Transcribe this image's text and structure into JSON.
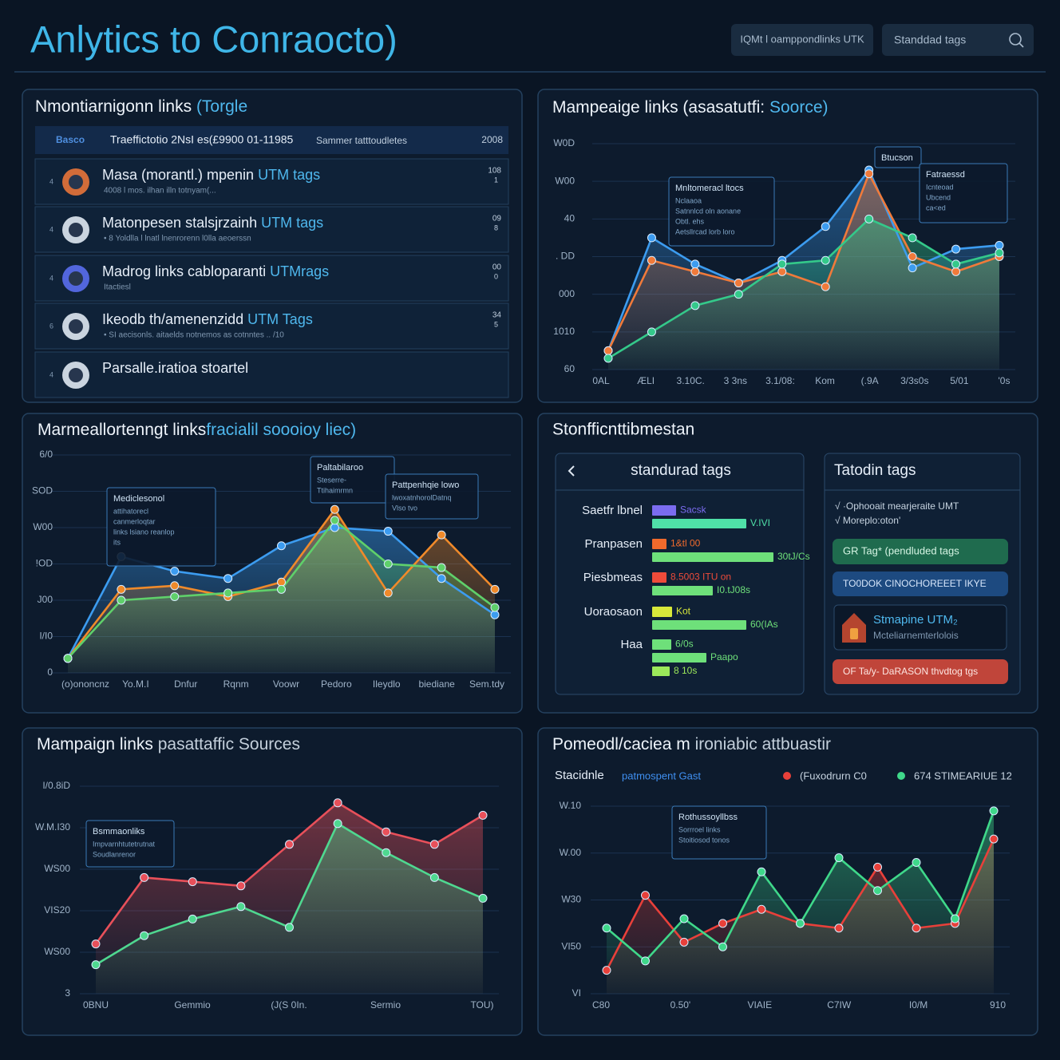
{
  "header": {
    "title": "Anlytics to Conraocto)",
    "buttons": [
      "IQMt l oamppondlinks UTK",
      "Standdad tags"
    ]
  },
  "links_panel": {
    "title": "Nmontiarnigonn links ",
    "title_accent": "(Torgle",
    "columns": [
      "Basco",
      "Traeffictotio 2NsI es(£9900 01-11985",
      "Sammer tatttoudletes",
      "2008"
    ],
    "rows": [
      {
        "marker": "4",
        "title": "Masa (morantl.) mpenin ",
        "accent": "UTM tags",
        "sub": "4008 l mos. ilhan illn totnyam(...",
        "num": "108",
        "num2": "1"
      },
      {
        "marker": "4",
        "title": "Matonpesen stalsjrzainh ",
        "accent": "UTM tags",
        "sub": "• 8 Yoldlla l lnatl lnenrorenn l0lla aeoerssn",
        "num": "09",
        "num2": "8"
      },
      {
        "marker": "4",
        "title": "Madrog links cabloparanti ",
        "accent": "UTMrags",
        "sub": "Itactiesl",
        "num": "00",
        "num2": "0"
      },
      {
        "marker": "6",
        "title": "Ikeodb th/amenenzidd ",
        "accent": "UTM Tags",
        "sub": "• SI aecisonls. aitaelds notnemos as cotnntes .. /10",
        "num": "34",
        "num2": "5"
      },
      {
        "marker": "4",
        "title": "Parsalle.iratioa stoartel"
      }
    ]
  },
  "tags_panel": {
    "title": "Stonfficnttibmestan",
    "left_title": "standurad tags",
    "xlim": [
      0,
      200
    ],
    "rows": [
      {
        "label": "Saetfr lbnel",
        "bars": [
          {
            "value": 30,
            "label": "Sacsk",
            "color": "#7b6cf0"
          },
          {
            "value": 118,
            "label": "V.IVI",
            "color": "#4fe0a8"
          }
        ]
      },
      {
        "label": "Pranpasen",
        "bars": [
          {
            "value": 18,
            "label": "1&tl  00",
            "color": "#f06a2c"
          },
          {
            "value": 152,
            "label": "30tJ/Cs",
            "color": "#6ee07a"
          }
        ]
      },
      {
        "label": "Piesbmeas",
        "bars": [
          {
            "value": 18,
            "label": "8.5003  ITU on",
            "color": "#ee4b3a"
          },
          {
            "value": 76,
            "label": "I0.tJ08s",
            "color": "#6ee07a"
          }
        ]
      },
      {
        "label": "Uoraosaon",
        "bars": [
          {
            "value": 25,
            "label": "Kot",
            "color": "#d8e83a"
          },
          {
            "value": 118,
            "label": "60(IAs",
            "color": "#6ee07a"
          }
        ]
      },
      {
        "label": "Haa",
        "bars": [
          {
            "value": 24,
            "label": "6/0s",
            "color": "#6ee07a"
          },
          {
            "value": 68,
            "label": "Paapo",
            "color": "#6ee07a"
          },
          {
            "value": 22,
            "label": "8 10s",
            "color": "#9be85a"
          }
        ]
      }
    ],
    "right_title": "Tatodin tags",
    "checks": [
      "√  ·Ophooait mearjeraite  UMT",
      "√  Moreplo:oton'"
    ],
    "pill_green": "GR Tag*  (pendluded tags",
    "pill_blue": "TO0DOK CINOCHOREEET IKYE",
    "card_title": "Stmapine UTM₂",
    "card_sub": "Mcteliarnemterlolois",
    "pill_red": "OF Ta/y-  DaRASON thvdtog tgs"
  },
  "chart_data": [
    {
      "type": "line",
      "title": "Mampeaige links (asasatutfi: ",
      "title_accent": "Soorce)",
      "categories": [
        "0AL",
        "ÆLI",
        "3.10C.",
        "3 3ns",
        "3.1/08:",
        "Kom",
        "(.9A",
        "3/3s0s",
        "5/01",
        "'0s"
      ],
      "ylim": [
        0,
        6
      ],
      "yticks": [
        {
          "value": 6,
          "label": "W0D"
        },
        {
          "value": 5,
          "label": "W00"
        },
        {
          "value": 4,
          "label": "40"
        },
        {
          "value": 3,
          "label": ". DD"
        },
        {
          "value": 2,
          "label": "000"
        },
        {
          "value": 1,
          "label": "1010"
        },
        {
          "value": 0,
          "label": "60"
        }
      ],
      "series": [
        {
          "color": "#3c9cf0",
          "values": [
            0.5,
            3.5,
            2.8,
            2.3,
            2.9,
            3.8,
            5.3,
            2.7,
            3.2,
            3.3
          ]
        },
        {
          "color": "#f07a3a",
          "values": [
            0.5,
            2.9,
            2.6,
            2.3,
            2.6,
            2.2,
            5.2,
            3.0,
            2.6,
            3.0
          ]
        },
        {
          "color": "#34c98a",
          "values": [
            0.3,
            1.0,
            1.7,
            2.0,
            2.8,
            2.9,
            4.0,
            3.5,
            2.8,
            3.1
          ]
        }
      ],
      "annotations": [
        {
          "lines": [
            "Mnltomeracl ltocs",
            "Nclaaoa",
            "Satnnlcd oln aonane",
            "Obtl. ehs",
            "Aetsllrcad lorb loro"
          ]
        },
        {
          "lines": [
            "Btucson"
          ]
        },
        {
          "lines": [
            "Fatraessd",
            "Icnteoad",
            "Ubcend",
            "ca<ed"
          ]
        }
      ]
    },
    {
      "type": "line",
      "title": "Marmeallortenngt links",
      "title_accent": "fracialil soooioy liec)",
      "categories": [
        "(o)ononcnz",
        "Yo.M.I",
        "Dnfur",
        "Rqnm",
        "Voowr",
        "Pedoro",
        "Ileydlo",
        "biediane",
        "Sem.tdy"
      ],
      "ylim": [
        0,
        6
      ],
      "yticks": [
        {
          "value": 6,
          "label": "6/0"
        },
        {
          "value": 5,
          "label": "SOD"
        },
        {
          "value": 4,
          "label": "W00"
        },
        {
          "value": 3,
          "label": "!OD"
        },
        {
          "value": 2,
          "label": "J00"
        },
        {
          "value": 1,
          "label": "I/I0"
        },
        {
          "value": 0,
          "label": "0"
        }
      ],
      "series": [
        {
          "color": "#3c9cf0",
          "values": [
            0.4,
            3.2,
            2.8,
            2.6,
            3.5,
            4.0,
            3.9,
            2.6,
            1.6
          ]
        },
        {
          "color": "#f08a2a",
          "values": [
            0.4,
            2.3,
            2.4,
            2.1,
            2.5,
            4.5,
            2.2,
            3.8,
            2.3
          ]
        },
        {
          "color": "#5fd06a",
          "values": [
            0.4,
            2.0,
            2.1,
            2.2,
            2.3,
            4.2,
            3.0,
            2.9,
            1.8
          ]
        }
      ],
      "annotations": [
        {
          "lines": [
            "Mediclesonol",
            "attihatorecl",
            "canmerloqtar",
            "links  lsiano reanlop",
            "its"
          ]
        },
        {
          "lines": [
            "Paltabilaroo",
            "Steserre-",
            "Ttihaimrmn"
          ]
        },
        {
          "lines": [
            "Pattpenhqie lowo",
            "lwoxatnhorolDatnq",
            "Vlso tvo"
          ]
        }
      ]
    },
    {
      "type": "line",
      "title": "Mampaign links ",
      "title_accent": "pasattaffic Sources",
      "categories": [
        "0BNU",
        null,
        "Gemmio",
        null,
        "(J(S 0In.",
        null,
        "Sermio",
        null,
        "TOU)"
      ],
      "ylim": [
        0,
        5
      ],
      "yticks": [
        {
          "value": 5,
          "label": "I/0.8iD"
        },
        {
          "value": 4,
          "label": "W.M.I30"
        },
        {
          "value": 3,
          "label": "WS00"
        },
        {
          "value": 2,
          "label": "VIS20"
        },
        {
          "value": 1,
          "label": "WS00"
        },
        {
          "value": 0,
          "label": "3"
        }
      ],
      "series": [
        {
          "color": "#e8505a",
          "values": [
            1.2,
            2.8,
            2.7,
            2.6,
            3.6,
            4.6,
            3.9,
            3.6,
            4.3
          ]
        },
        {
          "color": "#4fd890",
          "values": [
            0.7,
            1.4,
            1.8,
            2.1,
            1.6,
            4.1,
            3.4,
            2.8,
            2.3
          ]
        }
      ],
      "annotations": [
        {
          "lines": [
            "Bsmmaonliks",
            "Impvarnhtutetrutnat",
            "Soudlanrenor"
          ]
        }
      ]
    },
    {
      "type": "line",
      "title": "Pomeodl/caciea m",
      "title_accent": " ironiabic attbuastir",
      "legend_label": "Stacidnle",
      "legend_accent": "patmospent Gast",
      "categories": [
        "C80",
        null,
        "0.50'",
        null,
        "VIAIE",
        null,
        "C7IW",
        null,
        "I0/M",
        null,
        "910"
      ],
      "ylim": [
        0,
        4
      ],
      "yticks": [
        {
          "value": 4,
          "label": "W.10"
        },
        {
          "value": 3,
          "label": "W.00"
        },
        {
          "value": 2,
          "label": "W30"
        },
        {
          "value": 1,
          "label": "VI50"
        },
        {
          "value": 0,
          "label": "VI"
        }
      ],
      "series": [
        {
          "name": "(Fuxodrurn C0",
          "color": "#e8403a",
          "values": [
            0.5,
            2.1,
            1.1,
            1.5,
            1.8,
            1.5,
            1.4,
            2.7,
            1.4,
            1.5,
            3.3
          ]
        },
        {
          "name": "674 STIMEARIUE 12",
          "color": "#3fd88a",
          "values": [
            1.4,
            0.7,
            1.6,
            1.0,
            2.6,
            1.5,
            2.9,
            2.2,
            2.8,
            1.6,
            3.9
          ]
        }
      ],
      "annotations": [
        {
          "lines": [
            "Rothussoyllbss",
            "Sorrroel links",
            "Stoitiosod tonos"
          ]
        }
      ]
    }
  ]
}
